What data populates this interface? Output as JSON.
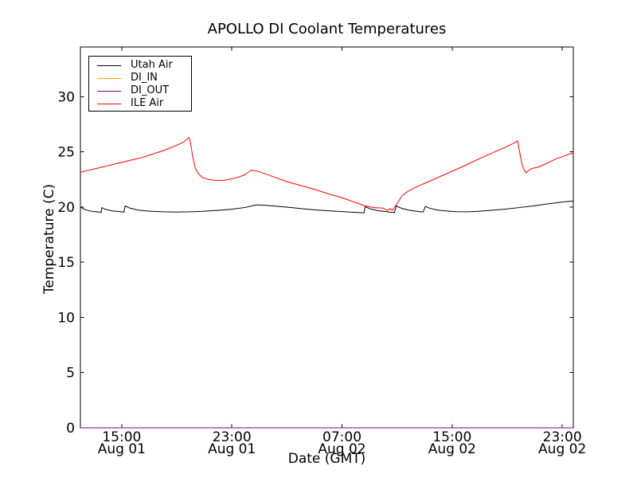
{
  "chart_data": {
    "type": "line",
    "title": "APOLLO DI Coolant Temperatures",
    "xlabel": "Date (GMT)",
    "ylabel": "Temperature (C)",
    "grid": false,
    "legend_position": "upper left",
    "x_unit": "hours after Aug 01 12:00 GMT",
    "xlim": [
      0,
      35.8
    ],
    "ylim": [
      0,
      34.5
    ],
    "yticks": [
      0,
      5,
      10,
      15,
      20,
      25,
      30
    ],
    "xticks": [
      {
        "t": 3,
        "time": "15:00",
        "date": "Aug 01"
      },
      {
        "t": 11,
        "time": "23:00",
        "date": "Aug 01"
      },
      {
        "t": 19,
        "time": "07:00",
        "date": "Aug 02"
      },
      {
        "t": 27,
        "time": "15:00",
        "date": "Aug 02"
      },
      {
        "t": 35,
        "time": "23:00",
        "date": "Aug 02"
      }
    ],
    "series": [
      {
        "name": "Utah Air",
        "color": "#000000",
        "points": [
          [
            0,
            20.0
          ],
          [
            0.2,
            19.85
          ],
          [
            0.5,
            19.7
          ],
          [
            0.9,
            19.6
          ],
          [
            1.4,
            19.55
          ],
          [
            1.5,
            19.5
          ],
          [
            1.56,
            19.95
          ],
          [
            1.8,
            19.8
          ],
          [
            2.3,
            19.65
          ],
          [
            3.0,
            19.57
          ],
          [
            3.15,
            19.53
          ],
          [
            3.25,
            20.1
          ],
          [
            3.6,
            19.9
          ],
          [
            4.2,
            19.72
          ],
          [
            5.0,
            19.62
          ],
          [
            6.0,
            19.57
          ],
          [
            7.0,
            19.55
          ],
          [
            8.0,
            19.57
          ],
          [
            9.0,
            19.62
          ],
          [
            10.0,
            19.7
          ],
          [
            11.0,
            19.8
          ],
          [
            12.0,
            19.97
          ],
          [
            12.8,
            20.2
          ],
          [
            13.6,
            20.15
          ],
          [
            14.5,
            20.05
          ],
          [
            15.5,
            19.93
          ],
          [
            16.5,
            19.8
          ],
          [
            17.5,
            19.7
          ],
          [
            18.5,
            19.62
          ],
          [
            19.5,
            19.55
          ],
          [
            20.3,
            19.5
          ],
          [
            20.6,
            19.47
          ],
          [
            20.68,
            20.05
          ],
          [
            21.0,
            19.85
          ],
          [
            21.6,
            19.68
          ],
          [
            22.3,
            19.57
          ],
          [
            22.8,
            19.5
          ],
          [
            22.95,
            20.1
          ],
          [
            23.3,
            19.9
          ],
          [
            23.8,
            19.73
          ],
          [
            24.4,
            19.62
          ],
          [
            24.9,
            19.55
          ],
          [
            25.05,
            20.05
          ],
          [
            25.4,
            19.88
          ],
          [
            25.9,
            19.73
          ],
          [
            26.5,
            19.65
          ],
          [
            27.3,
            19.58
          ],
          [
            28.2,
            19.57
          ],
          [
            29.0,
            19.62
          ],
          [
            30.0,
            19.72
          ],
          [
            31.0,
            19.83
          ],
          [
            32.0,
            19.97
          ],
          [
            33.0,
            20.12
          ],
          [
            34.0,
            20.3
          ],
          [
            35.0,
            20.45
          ],
          [
            35.8,
            20.55
          ]
        ]
      },
      {
        "name": "DI_IN",
        "color": "#ffa500",
        "points": [
          [
            0,
            0
          ],
          [
            35.8,
            0
          ]
        ]
      },
      {
        "name": "DI_OUT",
        "color": "#800080",
        "points": [
          [
            0,
            0
          ],
          [
            35.8,
            0
          ]
        ]
      },
      {
        "name": "ILE Air",
        "color": "#ff0000",
        "points": [
          [
            0,
            23.15
          ],
          [
            0.5,
            23.3
          ],
          [
            1.0,
            23.45
          ],
          [
            1.5,
            23.6
          ],
          [
            2.0,
            23.75
          ],
          [
            2.5,
            23.9
          ],
          [
            3.0,
            24.05
          ],
          [
            3.5,
            24.2
          ],
          [
            4.0,
            24.35
          ],
          [
            4.5,
            24.5
          ],
          [
            5.0,
            24.7
          ],
          [
            5.5,
            24.9
          ],
          [
            6.0,
            25.1
          ],
          [
            6.5,
            25.35
          ],
          [
            7.0,
            25.6
          ],
          [
            7.5,
            25.9
          ],
          [
            7.9,
            26.3
          ],
          [
            8.0,
            25.8
          ],
          [
            8.15,
            24.6
          ],
          [
            8.35,
            23.5
          ],
          [
            8.6,
            22.95
          ],
          [
            8.9,
            22.65
          ],
          [
            9.3,
            22.5
          ],
          [
            9.8,
            22.42
          ],
          [
            10.3,
            22.4
          ],
          [
            10.8,
            22.5
          ],
          [
            11.3,
            22.65
          ],
          [
            11.9,
            22.9
          ],
          [
            12.4,
            23.35
          ],
          [
            13.0,
            23.2
          ],
          [
            14.0,
            22.75
          ],
          [
            15.0,
            22.3
          ],
          [
            16.0,
            21.95
          ],
          [
            17.0,
            21.6
          ],
          [
            18.0,
            21.2
          ],
          [
            19.0,
            20.85
          ],
          [
            20.0,
            20.4
          ],
          [
            20.7,
            20.1
          ],
          [
            21.3,
            19.95
          ],
          [
            22.0,
            19.9
          ],
          [
            22.3,
            19.7
          ],
          [
            22.5,
            19.85
          ],
          [
            22.67,
            19.72
          ],
          [
            23.0,
            20.3
          ],
          [
            23.35,
            21.0
          ],
          [
            23.7,
            21.35
          ],
          [
            24.2,
            21.7
          ],
          [
            25.0,
            22.15
          ],
          [
            26.0,
            22.7
          ],
          [
            27.0,
            23.25
          ],
          [
            28.0,
            23.8
          ],
          [
            29.0,
            24.4
          ],
          [
            30.0,
            24.95
          ],
          [
            31.0,
            25.5
          ],
          [
            31.5,
            25.8
          ],
          [
            31.75,
            26.0
          ],
          [
            31.9,
            25.0
          ],
          [
            32.05,
            24.0
          ],
          [
            32.2,
            23.45
          ],
          [
            32.35,
            23.1
          ],
          [
            32.55,
            23.3
          ],
          [
            32.8,
            23.5
          ],
          [
            33.2,
            23.6
          ],
          [
            33.6,
            23.8
          ],
          [
            34.1,
            24.1
          ],
          [
            34.6,
            24.4
          ],
          [
            35.1,
            24.6
          ],
          [
            35.5,
            24.8
          ],
          [
            35.8,
            24.9
          ]
        ]
      }
    ]
  }
}
